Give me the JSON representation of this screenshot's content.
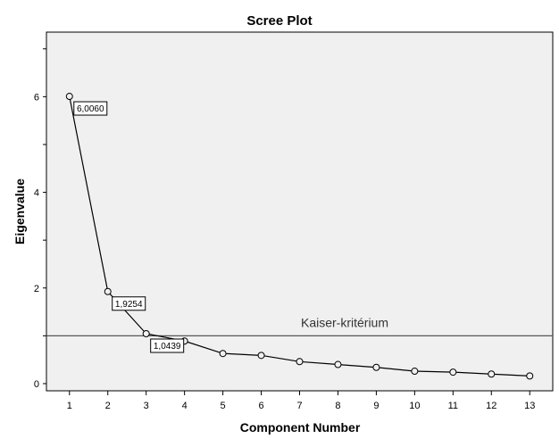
{
  "chart_data": {
    "type": "line",
    "title": "Scree Plot",
    "xlabel": "Component Number",
    "ylabel": "Eigenvalue",
    "x": [
      1,
      2,
      3,
      4,
      5,
      6,
      7,
      8,
      9,
      10,
      11,
      12,
      13
    ],
    "series": [
      {
        "values": [
          6.006,
          1.9254,
          1.0439,
          0.89,
          0.63,
          0.59,
          0.46,
          0.4,
          0.34,
          0.26,
          0.24,
          0.2,
          0.16
        ]
      }
    ],
    "x_ticks": [
      "1",
      "2",
      "3",
      "4",
      "5",
      "6",
      "7",
      "8",
      "9",
      "10",
      "11",
      "12",
      "13"
    ],
    "y_ticks": [
      "0",
      "2",
      "4",
      "6"
    ],
    "xlim": [
      0.4,
      13.6
    ],
    "ylim": [
      -0.15,
      7.35
    ],
    "reference_line": {
      "y": 1,
      "label": "Kaiser-kritérium"
    },
    "data_labels": [
      {
        "index": 0,
        "text": "6,0060"
      },
      {
        "index": 1,
        "text": "1,9254"
      },
      {
        "index": 2,
        "text": "1,0439"
      }
    ],
    "plot_background": "#f0f0f0",
    "line_color": "#000000",
    "grid": false
  }
}
